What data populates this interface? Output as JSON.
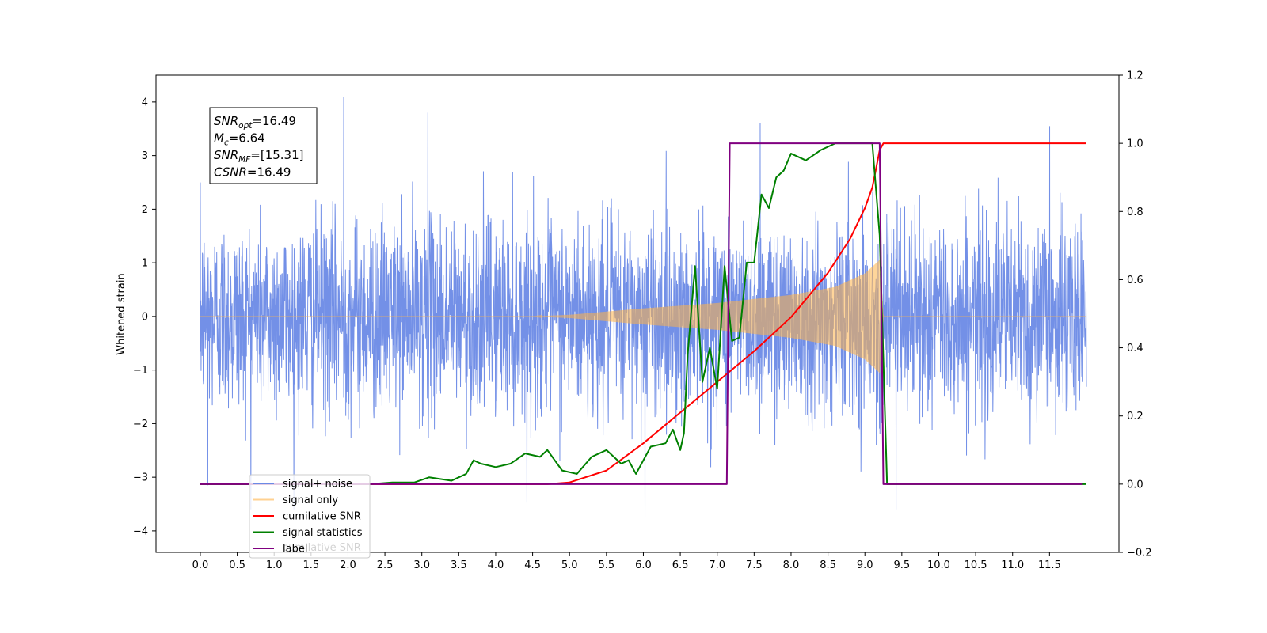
{
  "chart_data": {
    "type": "line",
    "title": "",
    "xlabel": "",
    "ylabel": "Whitened strain",
    "y2label": "",
    "xlim": [
      -0.6,
      12.44
    ],
    "ylim": [
      -4.4,
      4.5
    ],
    "y2lim": [
      -0.2,
      1.2
    ],
    "xticks": [
      0.0,
      0.5,
      1.0,
      1.5,
      2.0,
      2.5,
      3.0,
      3.5,
      4.0,
      4.5,
      5.0,
      5.5,
      6.0,
      6.5,
      7.0,
      7.5,
      8.0,
      8.5,
      9.0,
      9.5,
      10.0,
      10.5,
      11.0,
      11.5
    ],
    "xtick_labels": [
      "0.0",
      "0.5",
      "1.0",
      "1.5",
      "2.0",
      "2.5",
      "3.0",
      "3.5",
      "4.0",
      "4.5",
      "5.0",
      "5.5",
      "6.0",
      "6.5",
      "7.0",
      "7.5",
      "8.0",
      "8.5",
      "9.0",
      "9.5",
      "10.0",
      "10.5",
      "11.0",
      "11.5"
    ],
    "yticks": [
      -4,
      -3,
      -2,
      -1,
      0,
      1,
      2,
      3,
      4
    ],
    "ytick_labels": [
      "−4",
      "−3",
      "−2",
      "−1",
      "0",
      "1",
      "2",
      "3",
      "4"
    ],
    "y2ticks": [
      -0.2,
      0.0,
      0.2,
      0.4,
      0.6,
      0.8,
      1.0,
      1.2
    ],
    "y2tick_labels": [
      "−0.2",
      "0.0",
      "0.2",
      "0.4",
      "0.6",
      "0.8",
      "1.0",
      "1.2"
    ],
    "grid": false,
    "legend_placement": "lower-left",
    "legend": [
      "signal+ noise",
      "signal only",
      "cumilative SNR",
      "signal statistics",
      "label"
    ],
    "legend_overlap_text": "cumilative SNR",
    "annotation": [
      {
        "base": "SNR",
        "sub": "opt",
        "value": "=16.49"
      },
      {
        "base": "M",
        "sub": "c",
        "value": "=6.64"
      },
      {
        "base": "SNR",
        "sub": "MF",
        "value": "=[15.31]"
      },
      {
        "base": "CSNR",
        "sub": "",
        "value": "=16.49"
      }
    ],
    "series": [
      {
        "name": "signal+ noise",
        "axis": "left",
        "color": "#6b8ae6",
        "kind": "noise",
        "x_range": [
          0.0,
          12.0
        ],
        "typical_amplitude": 2.3,
        "max": 4.1,
        "min": -3.75
      },
      {
        "name": "signal only",
        "axis": "left",
        "color": "#ffb347",
        "kind": "chirp",
        "x_range": [
          0.0,
          12.0
        ],
        "amplitude_envelope": [
          [
            0.0,
            0.0
          ],
          [
            4.5,
            0.0
          ],
          [
            5.0,
            0.03
          ],
          [
            6.0,
            0.15
          ],
          [
            7.0,
            0.25
          ],
          [
            8.0,
            0.4
          ],
          [
            8.6,
            0.55
          ],
          [
            9.0,
            0.8
          ],
          [
            9.2,
            1.05
          ],
          [
            9.25,
            0.0
          ],
          [
            12.0,
            0.0
          ]
        ]
      },
      {
        "name": "cumilative SNR",
        "axis": "right",
        "color": "#ff0000",
        "x": [
          0.0,
          4.7,
          5.0,
          5.5,
          6.0,
          6.5,
          7.0,
          7.5,
          8.0,
          8.5,
          8.8,
          9.0,
          9.1,
          9.2,
          9.25,
          12.0
        ],
        "y": [
          0.0,
          0.0,
          0.005,
          0.04,
          0.12,
          0.21,
          0.3,
          0.39,
          0.49,
          0.62,
          0.72,
          0.81,
          0.87,
          0.98,
          1.0,
          1.0
        ]
      },
      {
        "name": "signal statistics",
        "axis": "right",
        "color": "#008000",
        "x": [
          0.0,
          2.3,
          2.6,
          2.9,
          3.1,
          3.4,
          3.6,
          3.7,
          3.8,
          4.0,
          4.2,
          4.4,
          4.6,
          4.7,
          4.9,
          5.1,
          5.3,
          5.5,
          5.7,
          5.8,
          5.9,
          6.1,
          6.3,
          6.4,
          6.5,
          6.55,
          6.6,
          6.7,
          6.8,
          6.9,
          7.0,
          7.1,
          7.2,
          7.3,
          7.4,
          7.5,
          7.6,
          7.7,
          7.8,
          7.9,
          8.0,
          8.2,
          8.4,
          8.6,
          8.8,
          9.0,
          9.1,
          9.2,
          9.3,
          12.0
        ],
        "y": [
          0.0,
          0.0,
          0.005,
          0.005,
          0.02,
          0.01,
          0.03,
          0.07,
          0.06,
          0.05,
          0.06,
          0.09,
          0.08,
          0.1,
          0.04,
          0.03,
          0.08,
          0.1,
          0.06,
          0.07,
          0.03,
          0.11,
          0.12,
          0.16,
          0.1,
          0.15,
          0.38,
          0.64,
          0.3,
          0.4,
          0.28,
          0.64,
          0.42,
          0.43,
          0.65,
          0.65,
          0.85,
          0.81,
          0.9,
          0.92,
          0.97,
          0.95,
          0.98,
          1.0,
          1.0,
          1.0,
          1.0,
          0.73,
          0.0,
          0.0
        ]
      },
      {
        "name": "label",
        "axis": "right",
        "color": "#800080",
        "x": [
          0.0,
          7.13,
          7.17,
          9.2,
          9.25,
          11.95
        ],
        "y": [
          0.0,
          0.0,
          1.0,
          1.0,
          0.0,
          0.0
        ]
      }
    ]
  }
}
